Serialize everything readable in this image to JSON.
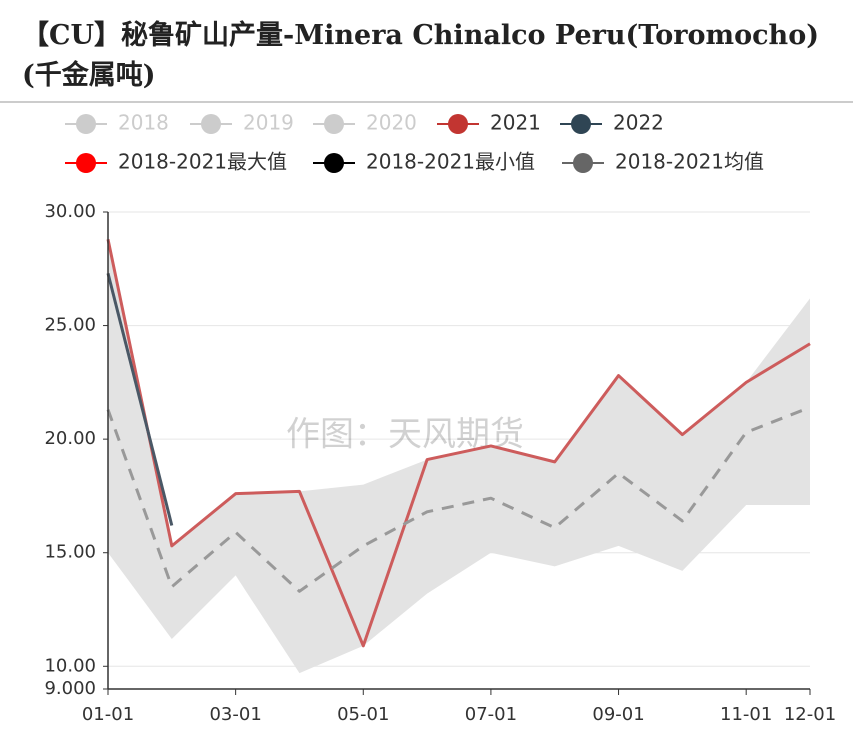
{
  "chart_data": {
    "type": "line",
    "title": "【CU】秘鲁矿山产量-Minera Chinalco Peru(Toromocho)",
    "subtitle": "(千金属吨)",
    "watermark": "作图：天风期货",
    "categories": [
      "01-01",
      null,
      "03-01",
      null,
      "05-01",
      null,
      "07-01",
      null,
      "09-01",
      null,
      "11-01",
      "12-01"
    ],
    "ylim": [
      9,
      30
    ],
    "yticks": [
      {
        "value": 9,
        "label": "9.000"
      },
      {
        "value": 10,
        "label": "10.00"
      },
      {
        "value": 15,
        "label": "15.00"
      },
      {
        "value": 20,
        "label": "20.00"
      },
      {
        "value": 25,
        "label": "25.00"
      },
      {
        "value": 30,
        "label": "30.00"
      }
    ],
    "grid": true,
    "series": [
      {
        "name": "2018",
        "color": "#cccccc",
        "hidden": true
      },
      {
        "name": "2019",
        "color": "#cccccc",
        "hidden": true
      },
      {
        "name": "2020",
        "color": "#cccccc",
        "hidden": true
      },
      {
        "name": "2021",
        "color": "#c23531",
        "values": [
          28.8,
          15.3,
          17.6,
          17.7,
          10.9,
          19.1,
          19.7,
          19.0,
          22.8,
          20.2,
          22.5,
          24.2
        ]
      },
      {
        "name": "2022",
        "color": "#2f4554",
        "values": [
          27.3,
          16.2,
          null,
          null,
          null,
          null,
          null,
          null,
          null,
          null,
          null,
          null
        ]
      },
      {
        "name": "2018-2021最大值",
        "color": "#ff0000",
        "role": "band-top",
        "values": [
          28.8,
          15.3,
          17.6,
          17.7,
          18.0,
          19.1,
          19.7,
          19.0,
          22.8,
          20.2,
          22.5,
          26.2
        ]
      },
      {
        "name": "2018-2021最小值",
        "color": "#000000",
        "role": "band-bottom",
        "values": [
          15.0,
          11.2,
          14.0,
          9.7,
          10.9,
          13.2,
          15.0,
          14.4,
          15.3,
          14.2,
          17.1,
          17.1
        ]
      },
      {
        "name": "2018-2021均值",
        "color": "#666666",
        "role": "mean",
        "values": [
          21.3,
          13.5,
          15.9,
          13.3,
          15.3,
          16.8,
          17.4,
          16.1,
          18.5,
          16.4,
          20.3,
          21.4
        ]
      }
    ]
  }
}
